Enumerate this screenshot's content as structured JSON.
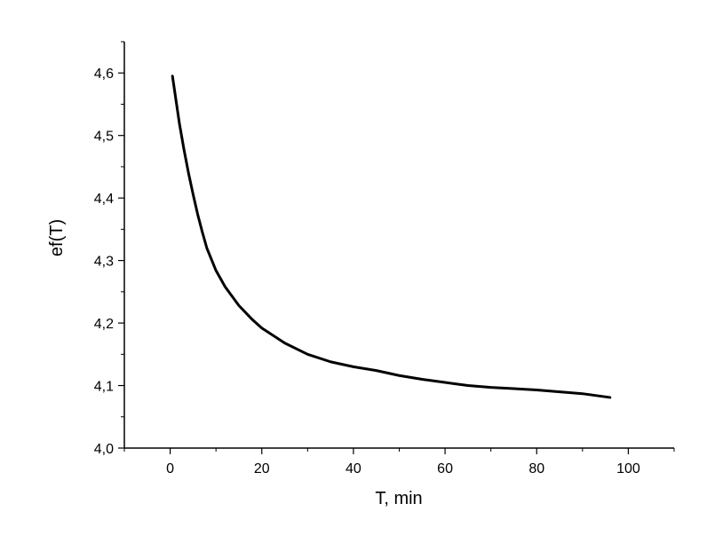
{
  "chart_data": {
    "type": "line",
    "title": "",
    "xlabel": "T, min",
    "ylabel": "ef(T)",
    "xlim": [
      -10,
      110
    ],
    "ylim": [
      4.0,
      4.65
    ],
    "x_ticks": [
      0,
      20,
      40,
      60,
      80,
      100
    ],
    "x_tick_labels": [
      "0",
      "20",
      "40",
      "60",
      "80",
      "100"
    ],
    "y_ticks": [
      4.0,
      4.1,
      4.2,
      4.3,
      4.4,
      4.5,
      4.6
    ],
    "y_tick_labels": [
      "4,0",
      "4,1",
      "4,2",
      "4,3",
      "4,4",
      "4,5",
      "4,6"
    ],
    "grid": false,
    "series": [
      {
        "color": "#000000",
        "x": [
          0.5,
          1,
          2,
          3,
          4,
          5,
          6,
          7,
          8,
          10,
          12,
          15,
          18,
          20,
          25,
          30,
          35,
          40,
          45,
          50,
          55,
          60,
          65,
          70,
          75,
          80,
          85,
          90,
          96
        ],
        "y": [
          4.595,
          4.57,
          4.52,
          4.478,
          4.44,
          4.406,
          4.374,
          4.346,
          4.32,
          4.284,
          4.258,
          4.228,
          4.205,
          4.192,
          4.168,
          4.15,
          4.138,
          4.13,
          4.124,
          4.116,
          4.11,
          4.105,
          4.1,
          4.097,
          4.095,
          4.093,
          4.09,
          4.087,
          4.081
        ]
      }
    ]
  }
}
